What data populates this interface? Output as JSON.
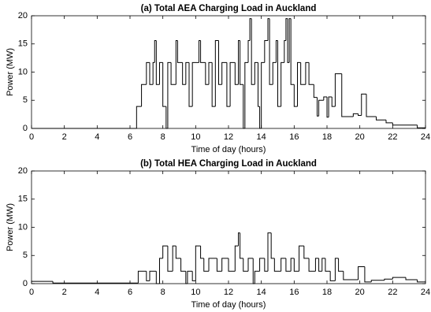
{
  "chart_data": [
    {
      "type": "step",
      "title": "(a) Total AEA Charging Load in Auckland",
      "x_label": "Time of day (hours)",
      "y_label": "Power (MW)",
      "xlim": [
        0,
        24
      ],
      "xticks": [
        0,
        2,
        4,
        6,
        8,
        10,
        12,
        14,
        16,
        18,
        20,
        22,
        24
      ],
      "ylim": [
        0,
        20
      ],
      "yticks": [
        0,
        5,
        10,
        15,
        20
      ],
      "color": "#000000",
      "x": [
        0,
        6.4,
        6.7,
        7,
        7.2,
        7.4,
        7.5,
        7.6,
        7.8,
        8,
        8.2,
        8.3,
        8.5,
        8.8,
        8.9,
        9.2,
        9.4,
        9.6,
        9.8,
        10.2,
        10.3,
        10.6,
        10.8,
        11,
        11.2,
        11.4,
        11.6,
        11.9,
        12.1,
        12.4,
        12.6,
        12.7,
        12.9,
        13,
        13.2,
        13.3,
        13.4,
        13.6,
        13.8,
        13.9,
        14,
        14.2,
        14.4,
        14.5,
        14.7,
        14.9,
        15,
        15.2,
        15.4,
        15.5,
        15.6,
        15.7,
        15.8,
        16,
        16.2,
        16.4,
        16.7,
        16.9,
        17.2,
        17.4,
        17.5,
        17.8,
        18,
        18.1,
        18.3,
        18.5,
        18.9,
        19.6,
        19.9,
        20.1,
        20.4,
        21,
        21.6,
        22,
        23.5,
        24
      ],
      "values": [
        0,
        3.9,
        7.8,
        11.7,
        7.8,
        11.7,
        15.6,
        7.8,
        11.7,
        3.9,
        0,
        11.7,
        7.8,
        15.6,
        11.7,
        7.8,
        11.7,
        3.9,
        11.7,
        15.6,
        11.7,
        7.8,
        11.7,
        3.9,
        15.6,
        7.8,
        11.7,
        3.9,
        11.7,
        7.8,
        15.6,
        7.8,
        0,
        11.7,
        15.6,
        19.5,
        7.8,
        11.7,
        3.9,
        0,
        11.7,
        15.6,
        19.5,
        7.8,
        11.7,
        15.6,
        3.9,
        11.7,
        15.6,
        19.5,
        11.7,
        19.5,
        7.8,
        3.9,
        11.7,
        7.8,
        11.7,
        7.8,
        5.5,
        2.2,
        5,
        5.6,
        2,
        5.6,
        3.9,
        9.7,
        2.1,
        2.6,
        2.3,
        6.1,
        2.1,
        1.5,
        1,
        0.6,
        0.1,
        0.1
      ]
    },
    {
      "type": "step",
      "title": "(b) Total HEA Charging Load in Auckland",
      "x_label": "Time of day (hours)",
      "y_label": "Power (MW)",
      "xlim": [
        0,
        24
      ],
      "xticks": [
        0,
        2,
        4,
        6,
        8,
        10,
        12,
        14,
        16,
        18,
        20,
        22,
        24
      ],
      "ylim": [
        0,
        20
      ],
      "yticks": [
        0,
        5,
        10,
        15,
        20
      ],
      "color": "#000000",
      "x": [
        0,
        1.3,
        6.5,
        7,
        7.2,
        7.6,
        7.8,
        8,
        8.3,
        8.6,
        8.8,
        9.1,
        9.4,
        9.5,
        9.8,
        10,
        10.3,
        10.5,
        10.8,
        11.3,
        11.6,
        12,
        12.4,
        12.6,
        12.7,
        12.9,
        13.2,
        13.5,
        13.6,
        13.9,
        14.2,
        14.4,
        14.6,
        14.8,
        15.2,
        15.5,
        15.8,
        16,
        16.3,
        16.6,
        16.9,
        17.3,
        17.5,
        17.7,
        17.9,
        18.2,
        18.5,
        18.7,
        19,
        19.9,
        20.3,
        20.7,
        21.5,
        22,
        22.8,
        23.5,
        24
      ],
      "values": [
        0.4,
        0.1,
        2.2,
        0.5,
        2.2,
        0,
        4.5,
        6.7,
        2.2,
        6.7,
        4.5,
        2.2,
        0,
        2.2,
        0.5,
        6.7,
        4.5,
        2.2,
        4.5,
        2.2,
        4.5,
        2.2,
        6.7,
        9,
        4.5,
        2.2,
        4.5,
        0,
        2.2,
        4.5,
        2.2,
        9,
        4.5,
        2.2,
        4.5,
        2.2,
        4.5,
        2.2,
        6.7,
        4.5,
        2.2,
        4.5,
        2.2,
        4.5,
        2.2,
        0.5,
        4.5,
        2.2,
        0.7,
        3,
        0.3,
        0.6,
        0.8,
        1.1,
        0.7,
        0.3,
        0.3
      ]
    }
  ]
}
